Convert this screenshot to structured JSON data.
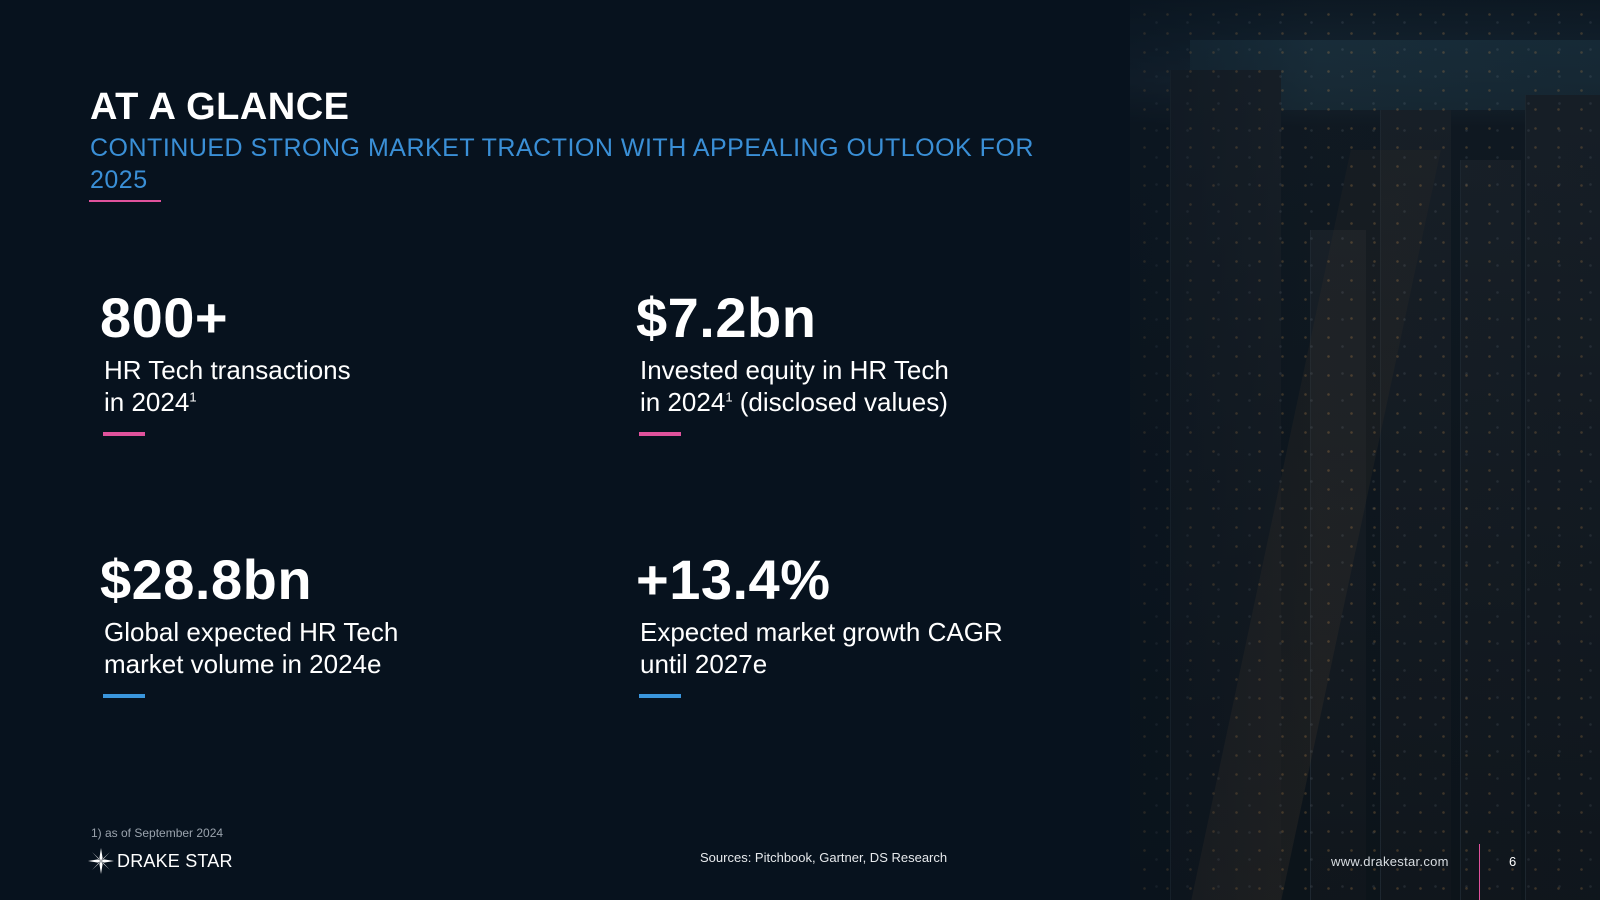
{
  "header": {
    "title": "AT A GLANCE",
    "subtitle": "CONTINUED STRONG MARKET TRACTION WITH APPEALING OUTLOOK FOR 2025"
  },
  "stats": [
    {
      "value": "800+",
      "line1": "HR Tech transactions",
      "line2": "in 2024",
      "sup": "1",
      "line2_after": "",
      "accent": "#e0529c"
    },
    {
      "value": "$7.2bn",
      "line1": "Invested equity in HR Tech",
      "line2": "in 2024",
      "sup": "1",
      "line2_after": " (disclosed values)",
      "accent": "#e0529c"
    },
    {
      "value": "$28.8bn",
      "line1": "Global expected HR Tech",
      "line2": "market volume in 2024e",
      "sup": "",
      "line2_after": "",
      "accent": "#3a96dd"
    },
    {
      "value": "+13.4%",
      "line1": "Expected market growth CAGR",
      "line2": "until 2027e",
      "sup": "",
      "line2_after": "",
      "accent": "#3a96dd"
    }
  ],
  "footer": {
    "footnote": "1) as of September 2024",
    "logo_text": "DRAKE STAR",
    "sources": "Sources: Pitchbook, Gartner, DS Research",
    "website": "www.drakestar.com",
    "page_number": "6"
  },
  "colors": {
    "background": "#07121e",
    "accent_pink": "#e0529c",
    "accent_blue": "#3a96dd",
    "subtitle_blue": "#3a8fd6"
  },
  "icons": {
    "logo": "star-compass-icon"
  }
}
